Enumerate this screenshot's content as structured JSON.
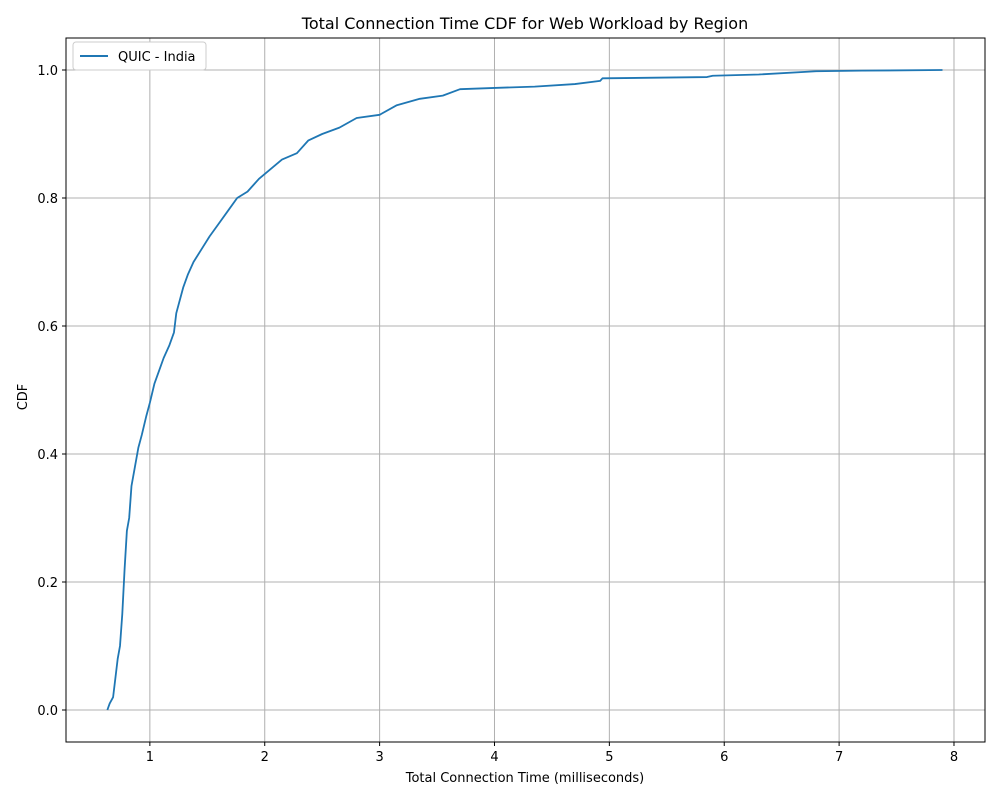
{
  "chart_data": {
    "type": "line",
    "title": "Total Connection Time CDF for Web Workload by Region",
    "xlabel": "Total Connection Time (milliseconds)",
    "ylabel": "CDF",
    "xlim": [
      0.27,
      8.27
    ],
    "ylim": [
      -0.05,
      1.05
    ],
    "x_ticks": [
      1,
      2,
      3,
      4,
      5,
      6,
      7,
      8
    ],
    "x_tick_labels": [
      "1",
      "2",
      "3",
      "4",
      "5",
      "6",
      "7",
      "8"
    ],
    "y_ticks": [
      0.0,
      0.2,
      0.4,
      0.6,
      0.8,
      1.0
    ],
    "y_tick_labels": [
      "0.0",
      "0.2",
      "0.4",
      "0.6",
      "0.8",
      "1.0"
    ],
    "grid": true,
    "legend_position": "top-left",
    "series": [
      {
        "name": "QUIC - India",
        "color": "#1f77b4",
        "points": [
          [
            0.63,
            0.0
          ],
          [
            0.65,
            0.01
          ],
          [
            0.68,
            0.02
          ],
          [
            0.7,
            0.05
          ],
          [
            0.72,
            0.08
          ],
          [
            0.74,
            0.1
          ],
          [
            0.76,
            0.15
          ],
          [
            0.78,
            0.22
          ],
          [
            0.8,
            0.28
          ],
          [
            0.82,
            0.3
          ],
          [
            0.84,
            0.35
          ],
          [
            0.87,
            0.38
          ],
          [
            0.9,
            0.41
          ],
          [
            0.93,
            0.43
          ],
          [
            0.97,
            0.46
          ],
          [
            1.0,
            0.48
          ],
          [
            1.04,
            0.51
          ],
          [
            1.08,
            0.53
          ],
          [
            1.12,
            0.55
          ],
          [
            1.17,
            0.57
          ],
          [
            1.21,
            0.59
          ],
          [
            1.23,
            0.62
          ],
          [
            1.26,
            0.64
          ],
          [
            1.29,
            0.66
          ],
          [
            1.33,
            0.68
          ],
          [
            1.38,
            0.7
          ],
          [
            1.45,
            0.72
          ],
          [
            1.52,
            0.74
          ],
          [
            1.6,
            0.76
          ],
          [
            1.68,
            0.78
          ],
          [
            1.76,
            0.8
          ],
          [
            1.85,
            0.81
          ],
          [
            1.95,
            0.83
          ],
          [
            2.05,
            0.845
          ],
          [
            2.15,
            0.86
          ],
          [
            2.28,
            0.87
          ],
          [
            2.38,
            0.89
          ],
          [
            2.5,
            0.9
          ],
          [
            2.65,
            0.91
          ],
          [
            2.8,
            0.925
          ],
          [
            3.0,
            0.93
          ],
          [
            3.15,
            0.945
          ],
          [
            3.35,
            0.955
          ],
          [
            3.55,
            0.96
          ],
          [
            3.7,
            0.97
          ],
          [
            4.0,
            0.972
          ],
          [
            4.35,
            0.974
          ],
          [
            4.7,
            0.978
          ],
          [
            4.92,
            0.983
          ],
          [
            4.94,
            0.987
          ],
          [
            5.4,
            0.988
          ],
          [
            5.85,
            0.989
          ],
          [
            5.9,
            0.991
          ],
          [
            6.3,
            0.993
          ],
          [
            6.8,
            0.998
          ],
          [
            7.2,
            0.999
          ],
          [
            7.9,
            1.0
          ]
        ]
      }
    ]
  }
}
